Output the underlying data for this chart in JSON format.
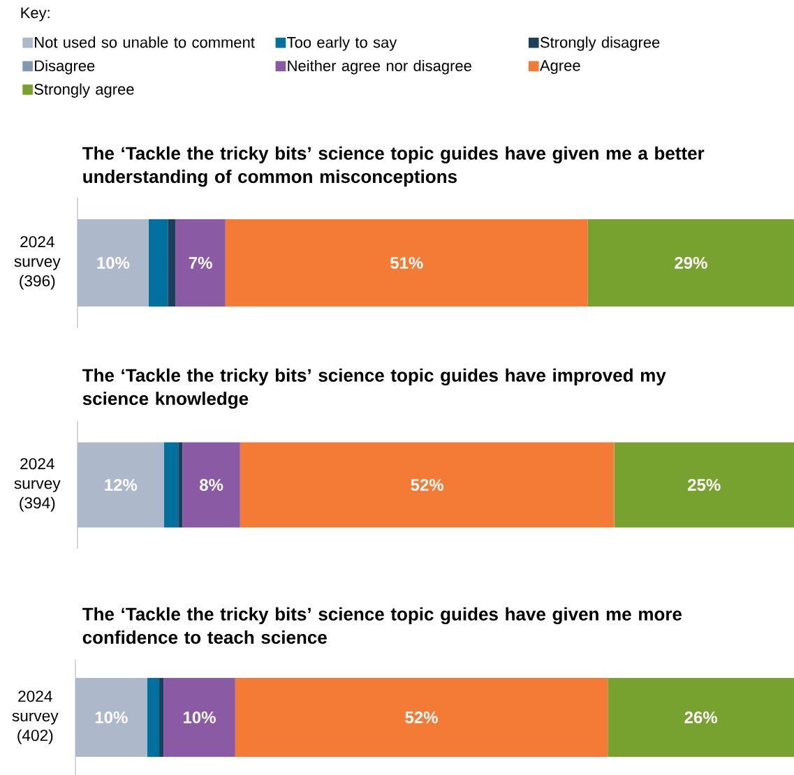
{
  "chart_data": [
    {
      "type": "bar",
      "orientation": "horizontal",
      "stacked": true,
      "title": "The ‘Tackle the tricky bits’ science topic guides have given me a better understanding of common misconceptions",
      "legend_title": "Key:",
      "legend": "top",
      "tick_labels": "y",
      "categories": [
        "2024 survey (396)"
      ],
      "series": [
        {
          "name": "Not used so unable to comment",
          "color": "#adb9ca",
          "values": [
            10
          ],
          "value_labels": [
            "10%"
          ]
        },
        {
          "name": "Too early to say",
          "color": "#00709e",
          "values": [
            2.7
          ],
          "value_labels": [
            null
          ]
        },
        {
          "name": "Strongly disagree",
          "color": "#1d3f5a",
          "values": [
            1.1
          ],
          "value_labels": [
            null
          ]
        },
        {
          "name": "Disagree",
          "color": "#8497b0",
          "values": [
            null
          ],
          "value_labels": [
            null
          ]
        },
        {
          "name": "Neither agree nor disagree",
          "color": "#8a5aa4",
          "values": [
            7
          ],
          "value_labels": [
            "7%"
          ]
        },
        {
          "name": "Agree",
          "color": "#f47b36",
          "values": [
            51
          ],
          "value_labels": [
            "51%"
          ]
        },
        {
          "name": "Strongly agree",
          "color": "#78a22f",
          "values": [
            29
          ],
          "value_labels": [
            "29%"
          ]
        }
      ]
    },
    {
      "type": "bar",
      "orientation": "horizontal",
      "stacked": true,
      "title": "The ‘Tackle the tricky bits’ science topic guides have improved my science knowledge",
      "tick_labels": "y",
      "categories": [
        "2024 survey (394)"
      ],
      "series": [
        {
          "color": "#adb9ca",
          "values": [
            12
          ],
          "value_labels": [
            "12%"
          ]
        },
        {
          "color": "#00709e",
          "values": [
            2
          ],
          "value_labels": [
            null
          ]
        },
        {
          "color": "#1d3f5a",
          "values": [
            0.6
          ],
          "value_labels": [
            null
          ]
        },
        {
          "color": "#8497b0",
          "values": [
            null
          ],
          "value_labels": [
            null
          ]
        },
        {
          "color": "#8a5aa4",
          "values": [
            8
          ],
          "value_labels": [
            "8%"
          ]
        },
        {
          "color": "#f47b36",
          "values": [
            52
          ],
          "value_labels": [
            "52%"
          ]
        },
        {
          "color": "#78a22f",
          "values": [
            25
          ],
          "value_labels": [
            "25%"
          ]
        }
      ]
    },
    {
      "type": "bar",
      "orientation": "horizontal",
      "stacked": true,
      "title": "The ‘Tackle the tricky bits’ science topic guides have given me more confidence to teach science",
      "tick_labels": "y",
      "categories": [
        "2024 survey (402)"
      ],
      "series": [
        {
          "color": "#adb9ca",
          "values": [
            10
          ],
          "value_labels": [
            "10%"
          ]
        },
        {
          "color": "#00709e",
          "values": [
            1.7
          ],
          "value_labels": [
            null
          ]
        },
        {
          "color": "#1d3f5a",
          "values": [
            0.6
          ],
          "value_labels": [
            null
          ]
        },
        {
          "color": "#8497b0",
          "values": [
            null
          ],
          "value_labels": [
            null
          ]
        },
        {
          "color": "#8a5aa4",
          "values": [
            10
          ],
          "value_labels": [
            "10%"
          ]
        },
        {
          "color": "#f47b36",
          "values": [
            52
          ],
          "value_labels": [
            "52%"
          ]
        },
        {
          "color": "#78a22f",
          "values": [
            26
          ],
          "value_labels": [
            "26%"
          ]
        }
      ]
    }
  ]
}
